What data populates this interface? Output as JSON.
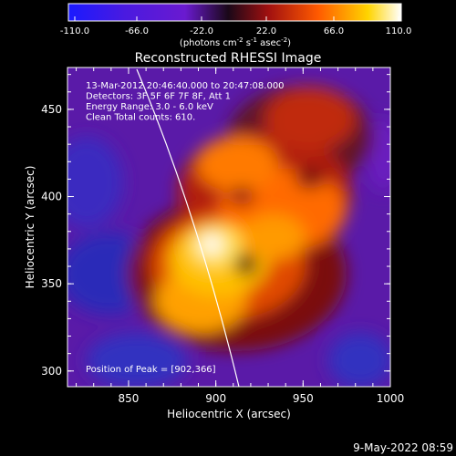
{
  "colorbar": {
    "ticks": [
      "-110.0",
      "-66.0",
      "-22.0",
      "22.0",
      "66.0",
      "110.0"
    ],
    "units_main": "(photons cm",
    "units_exp1": "-2",
    "units_mid": " s",
    "units_exp2": "-1",
    "units_tail": " asec",
    "units_exp3": "-2",
    "units_close": ")",
    "gradient": [
      "#1a1aff",
      "#6a1ad0",
      "#2a0a20",
      "#a01010",
      "#ff5a00",
      "#ffd400",
      "#ffffff"
    ]
  },
  "plot": {
    "title": "Reconstructed RHESSI Image",
    "info_lines": [
      "13-Mar-2012 20:46:40.000 to 20:47:08.000",
      "Detectors: 3F 5F 6F 7F 8F, Att 1",
      "Energy Range: 3.0 - 6.0 keV",
      "Clean     Total counts: 610."
    ],
    "peak_label": "Position of Peak = [902,366]",
    "x_axis": {
      "label": "Heliocentric X (arcsec)",
      "ticks": [
        "850",
        "900",
        "950",
        "1000"
      ],
      "range": [
        815,
        1000
      ]
    },
    "y_axis": {
      "label": "Heliocentric Y (arcsec)",
      "ticks": [
        "300",
        "350",
        "400",
        "450"
      ],
      "range": [
        291,
        474
      ]
    },
    "peak_position": [
      902,
      366
    ]
  },
  "footer": {
    "timestamp": "9-May-2022 08:59"
  }
}
